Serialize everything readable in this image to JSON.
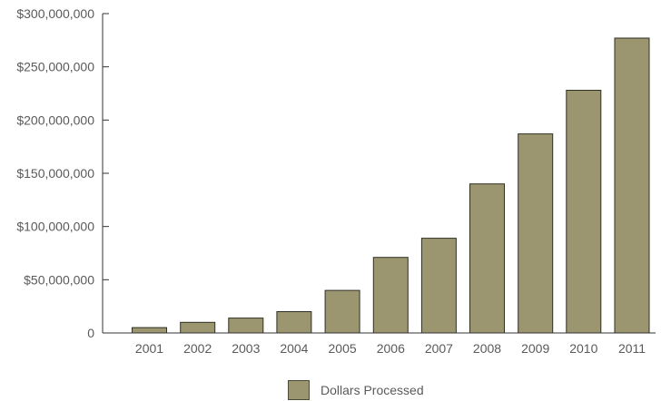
{
  "chart_data": {
    "type": "bar",
    "categories": [
      "2001",
      "2002",
      "2003",
      "2004",
      "2005",
      "2006",
      "2007",
      "2008",
      "2009",
      "2010",
      "2011"
    ],
    "series": [
      {
        "name": "Dollars Processed",
        "values": [
          5000000,
          10000000,
          14000000,
          20000000,
          40000000,
          71000000,
          89000000,
          140000000,
          187000000,
          228000000,
          277000000
        ]
      }
    ],
    "title": "",
    "xlabel": "",
    "ylabel": "",
    "ylim": [
      0,
      300000000
    ],
    "yticks": [
      0,
      50000000,
      100000000,
      150000000,
      200000000,
      250000000,
      300000000
    ],
    "ytick_labels": [
      "0",
      "$50,000,000",
      "$100,000,000",
      "$150,000,000",
      "$200,000,000",
      "$250,000,000",
      "$300,000,000"
    ],
    "grid": false,
    "legend_position": "bottom",
    "bar_color": "#9b9670",
    "bar_edge_color": "#2f2f24",
    "axis_color": "#333333"
  },
  "legend": {
    "label": "Dollars Processed"
  }
}
